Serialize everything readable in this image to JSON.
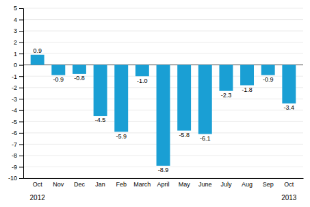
{
  "chart_data": {
    "type": "bar",
    "categories": [
      "Oct",
      "Nov",
      "Dec",
      "Jan",
      "Feb",
      "March",
      "April",
      "May",
      "June",
      "July",
      "Aug",
      "Sep",
      "Oct"
    ],
    "values": [
      0.9,
      -0.9,
      -0.8,
      -4.5,
      -5.9,
      -1.0,
      -8.9,
      -5.8,
      -6.1,
      -2.3,
      -1.8,
      -0.9,
      -3.4
    ],
    "value_labels": [
      "0.9",
      "-0.9",
      "-0.8",
      "-4.5",
      "-5.9",
      "-1.0",
      "-8.9",
      "-5.8",
      "-6.1",
      "-2.3",
      "-1.8",
      "-0.9",
      "-3.4"
    ],
    "color": "#1a9fd4",
    "ylim": [
      -10,
      5
    ],
    "yticks": [
      -10,
      -9,
      -8,
      -7,
      -6,
      -5,
      -4,
      -3,
      -2,
      -1,
      0,
      1,
      2,
      3,
      4,
      5
    ],
    "grid": true,
    "data_labels": true,
    "annotations": [
      "2012",
      "2013"
    ]
  }
}
